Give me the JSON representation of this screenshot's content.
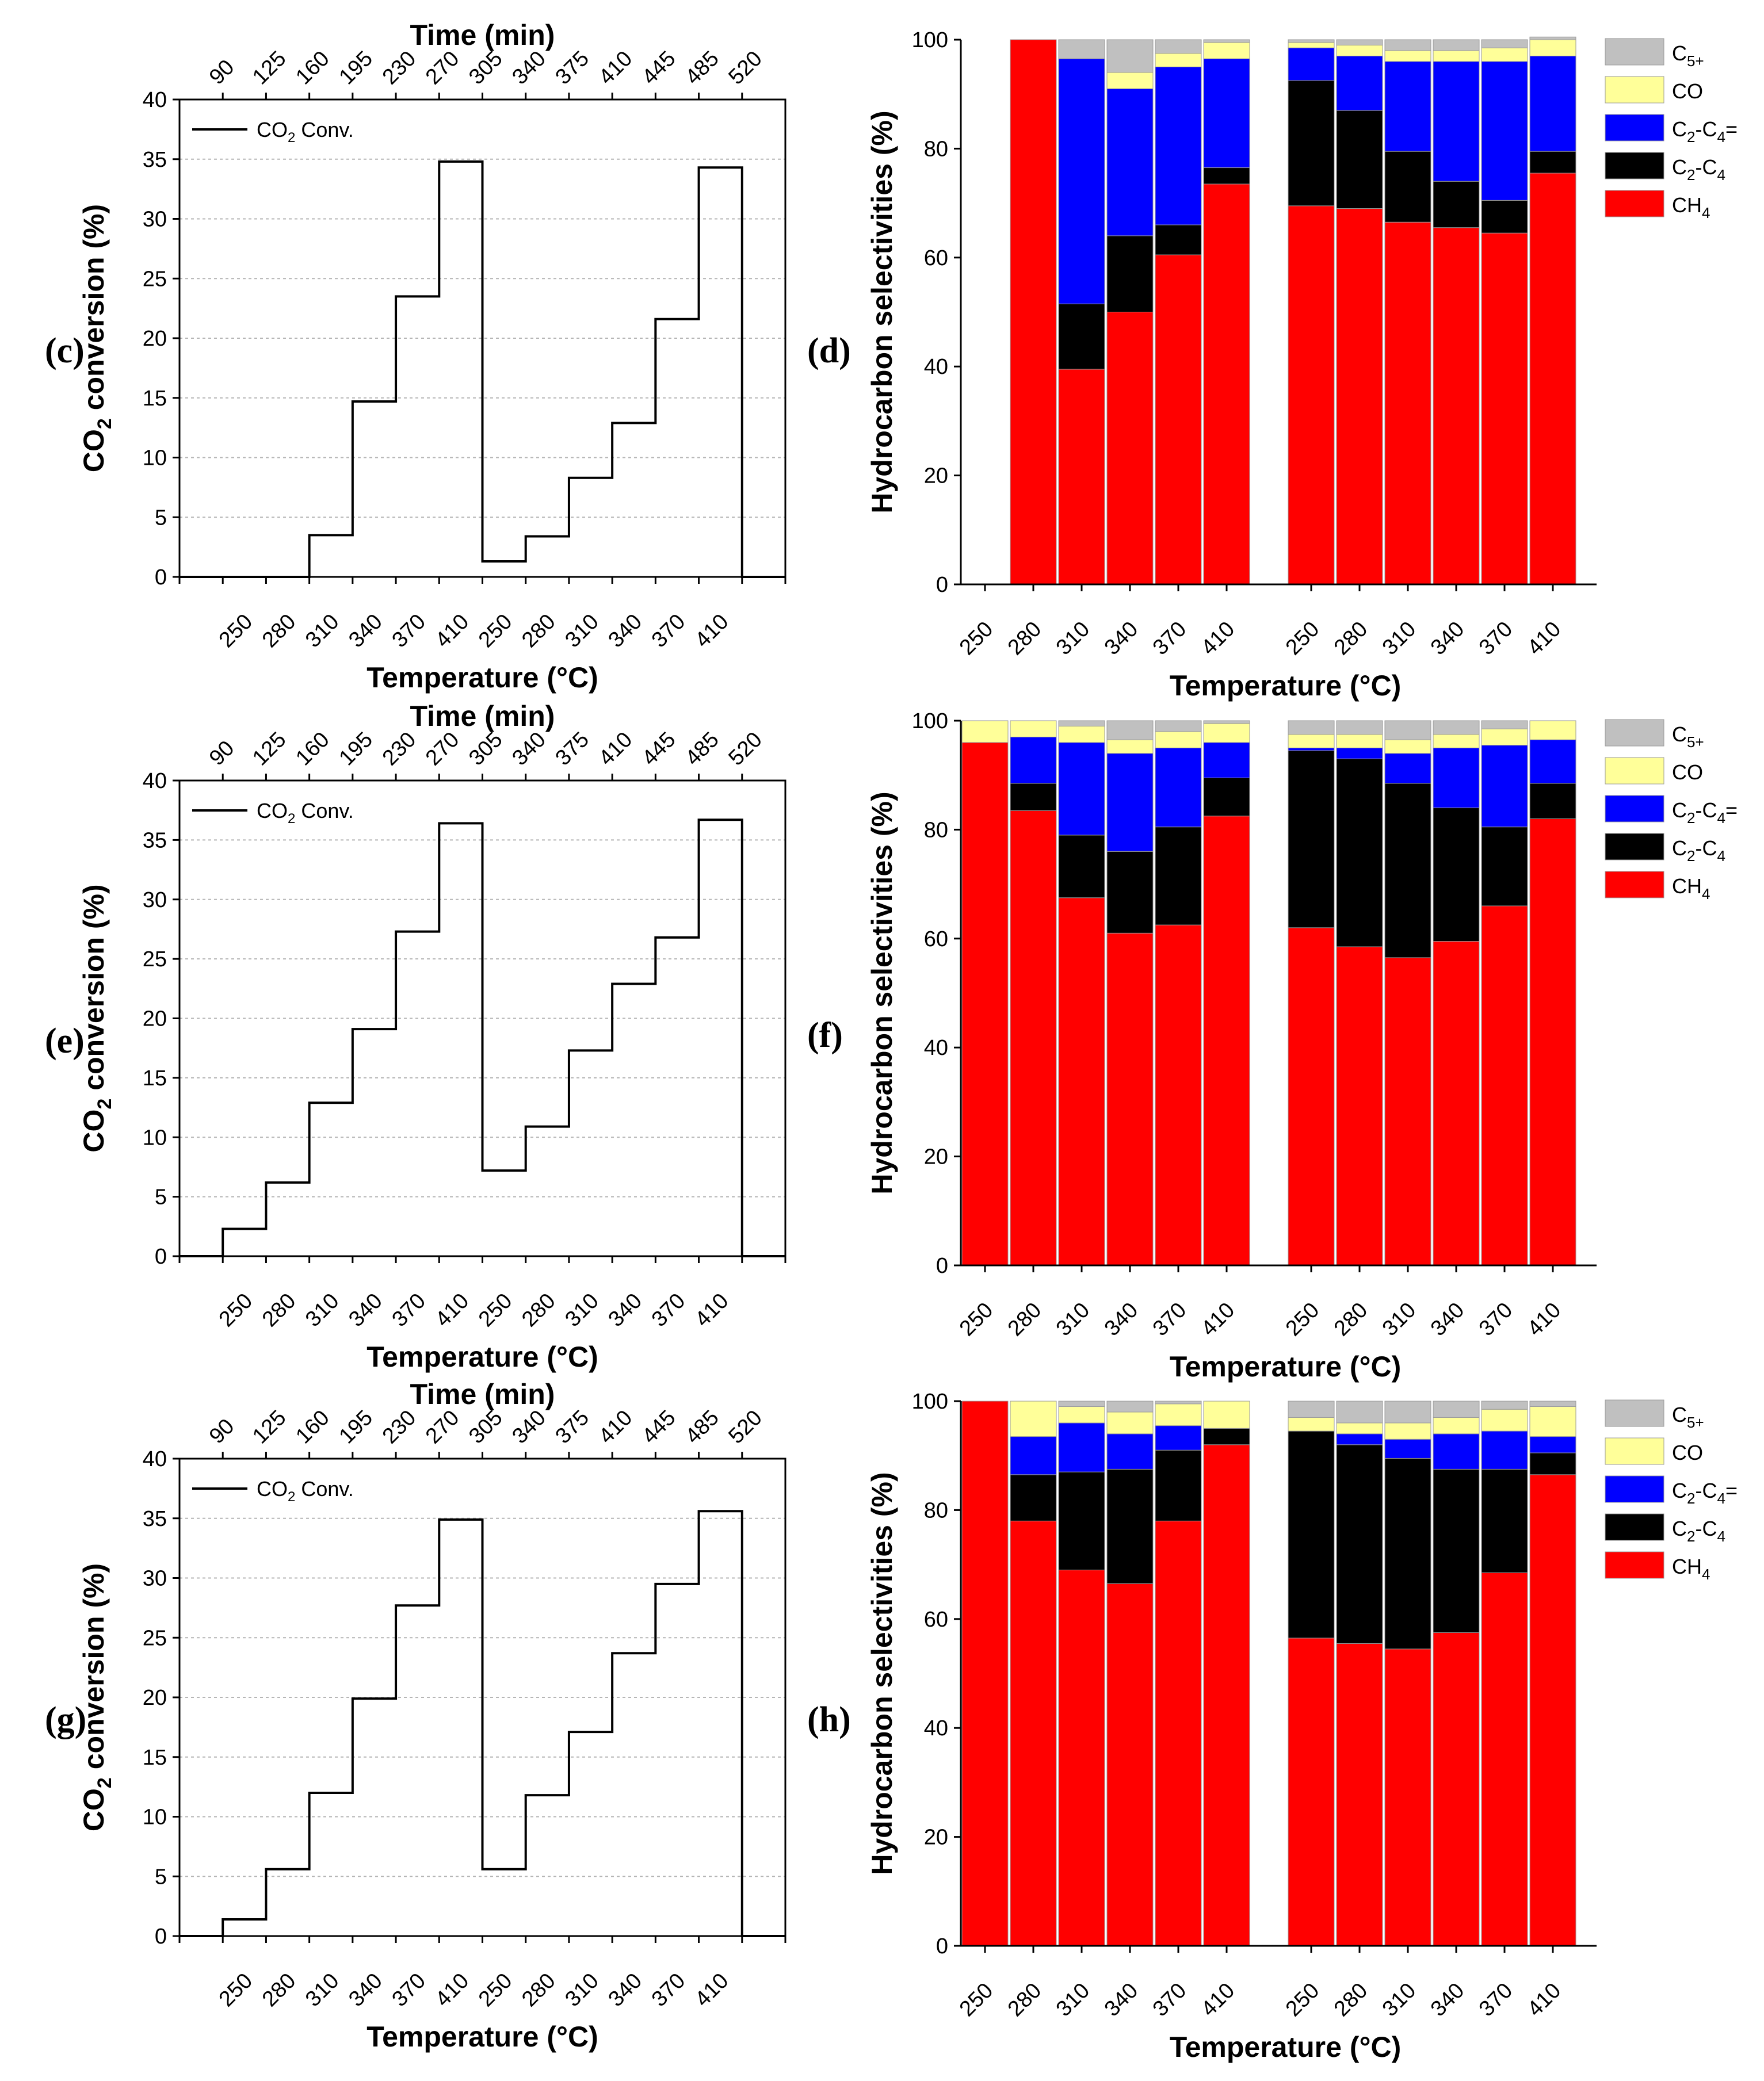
{
  "chart_data": [
    {
      "panel": "(c)",
      "type": "line",
      "title": "",
      "legend": "CO₂ Conv.",
      "legend_position": "top-left",
      "top_xlabel": "Time (min)",
      "top_ticks": [
        "90",
        "125",
        "160",
        "195",
        "230",
        "270",
        "305",
        "340",
        "375",
        "410",
        "445",
        "485",
        "520"
      ],
      "xlabel": "Temperature (°C)",
      "ylabel": "CO₂ conversion (%)",
      "ylim": [
        0,
        40
      ],
      "yticks": [
        0,
        5,
        10,
        15,
        20,
        25,
        30,
        35,
        40
      ],
      "grid": true,
      "categories": [
        "250",
        "280",
        "310",
        "340",
        "370",
        "410",
        "250",
        "280",
        "310",
        "340",
        "370",
        "410"
      ],
      "values": [
        0,
        0,
        3.5,
        14.7,
        23.5,
        34.8,
        1.3,
        3.4,
        8.3,
        12.9,
        21.6,
        34.3
      ],
      "trailing_value": 0
    },
    {
      "panel": "(d)",
      "type": "bar",
      "stacked": true,
      "xlabel": "Temperature (°C)",
      "ylabel": "Hydrocarbon selectivities (%)",
      "ylim": [
        0,
        100
      ],
      "yticks": [
        0,
        20,
        40,
        60,
        80,
        100
      ],
      "legend_position": "right",
      "categories": [
        "250",
        "280",
        "310",
        "340",
        "370",
        "410",
        "250",
        "280",
        "310",
        "340",
        "370",
        "410"
      ],
      "series": [
        {
          "name": "CH₄",
          "color": "#ff0000",
          "values": [
            0,
            100,
            39.5,
            50,
            60.5,
            73.5,
            69.5,
            69,
            66.5,
            65.5,
            64.5,
            75.5
          ]
        },
        {
          "name": "C₂-C₄",
          "color": "#000000",
          "values": [
            0,
            0,
            12,
            14,
            5.5,
            3,
            23,
            18,
            13,
            8.5,
            6,
            4
          ]
        },
        {
          "name": "C₂-C₄=",
          "color": "#0000ff",
          "values": [
            0,
            0,
            45,
            27,
            29,
            20,
            6,
            10,
            16.5,
            22,
            25.5,
            17.5
          ]
        },
        {
          "name": "CO",
          "color": "#ffff99",
          "values": [
            0,
            0,
            0,
            3,
            2.5,
            3,
            1,
            2,
            2,
            2,
            2.5,
            3
          ]
        },
        {
          "name": "C₅₊",
          "color": "#c0c0c0",
          "values": [
            0,
            0,
            3.5,
            6,
            2.5,
            0.5,
            0.5,
            1,
            2,
            2,
            1.5,
            0.5
          ]
        }
      ]
    },
    {
      "panel": "(e)",
      "type": "line",
      "title": "",
      "legend": "CO₂ Conv.",
      "legend_position": "top-left",
      "top_xlabel": "Time (min)",
      "top_ticks": [
        "90",
        "125",
        "160",
        "195",
        "230",
        "270",
        "305",
        "340",
        "375",
        "410",
        "445",
        "485",
        "520"
      ],
      "xlabel": "Temperature (°C)",
      "ylabel": "CO₂ conversion (%)",
      "ylim": [
        0,
        40
      ],
      "yticks": [
        0,
        5,
        10,
        15,
        20,
        25,
        30,
        35,
        40
      ],
      "grid": true,
      "categories": [
        "250",
        "280",
        "310",
        "340",
        "370",
        "410",
        "250",
        "280",
        "310",
        "340",
        "370",
        "410"
      ],
      "values": [
        2.3,
        6.2,
        12.9,
        19.1,
        27.3,
        36.4,
        7.2,
        10.9,
        17.3,
        22.9,
        26.8,
        36.7
      ],
      "trailing_value": 0
    },
    {
      "panel": "(f)",
      "type": "bar",
      "stacked": true,
      "xlabel": "Temperature (°C)",
      "ylabel": "Hydrocarbon selectivities (%)",
      "ylim": [
        0,
        100
      ],
      "yticks": [
        0,
        20,
        40,
        60,
        80,
        100
      ],
      "legend_position": "right",
      "categories": [
        "250",
        "280",
        "310",
        "340",
        "370",
        "410",
        "250",
        "280",
        "310",
        "340",
        "370",
        "410"
      ],
      "series": [
        {
          "name": "CH₄",
          "color": "#ff0000",
          "values": [
            96,
            83.5,
            67.5,
            61,
            62.5,
            82.5,
            62,
            58.5,
            56.5,
            59.5,
            66,
            82
          ]
        },
        {
          "name": "C₂-C₄",
          "color": "#000000",
          "values": [
            0,
            5,
            11.5,
            15,
            18,
            7,
            32.5,
            34.5,
            32,
            24.5,
            14.5,
            6.5
          ]
        },
        {
          "name": "C₂-C₄=",
          "color": "#0000ff",
          "values": [
            0,
            8.5,
            17,
            18,
            14.5,
            6.5,
            0.5,
            2,
            5.5,
            11,
            15,
            8
          ]
        },
        {
          "name": "CO",
          "color": "#ffff99",
          "values": [
            4,
            3,
            3,
            2.5,
            3,
            3.5,
            2.5,
            2.5,
            2.5,
            2.5,
            3,
            3.5
          ]
        },
        {
          "name": "C₅₊",
          "color": "#c0c0c0",
          "values": [
            0,
            0,
            1,
            3.5,
            2,
            0.5,
            2.5,
            2.5,
            3.5,
            2.5,
            1.5,
            0
          ]
        }
      ]
    },
    {
      "panel": "(g)",
      "type": "line",
      "title": "",
      "legend": "CO₂ Conv.",
      "legend_position": "top-left",
      "top_xlabel": "Time (min)",
      "top_ticks": [
        "90",
        "125",
        "160",
        "195",
        "230",
        "270",
        "305",
        "340",
        "375",
        "410",
        "445",
        "485",
        "520"
      ],
      "xlabel": "Temperature (°C)",
      "ylabel": "CO₂ conversion (%)",
      "ylim": [
        0,
        40
      ],
      "yticks": [
        0,
        5,
        10,
        15,
        20,
        25,
        30,
        35,
        40
      ],
      "grid": true,
      "categories": [
        "250",
        "280",
        "310",
        "340",
        "370",
        "410",
        "250",
        "280",
        "310",
        "340",
        "370",
        "410"
      ],
      "values": [
        1.4,
        5.6,
        12,
        19.9,
        27.7,
        34.9,
        5.6,
        11.8,
        17.1,
        23.7,
        29.5,
        35.6
      ],
      "trailing_value": 0
    },
    {
      "panel": "(h)",
      "type": "bar",
      "stacked": true,
      "xlabel": "Temperature (°C)",
      "ylabel": "Hydrocarbon selectivities (%)",
      "ylim": [
        0,
        100
      ],
      "yticks": [
        0,
        20,
        40,
        60,
        80,
        100
      ],
      "legend_position": "right",
      "categories": [
        "250",
        "280",
        "310",
        "340",
        "370",
        "410",
        "250",
        "280",
        "310",
        "340",
        "370",
        "410"
      ],
      "series": [
        {
          "name": "CH₄",
          "color": "#ff0000",
          "values": [
            100,
            78,
            69,
            66.5,
            78,
            92,
            56.5,
            55.5,
            54.5,
            57.5,
            68.5,
            86.5
          ]
        },
        {
          "name": "C₂-C₄",
          "color": "#000000",
          "values": [
            0,
            8.5,
            18,
            21,
            13,
            3,
            38,
            36.5,
            35,
            30,
            19,
            4
          ]
        },
        {
          "name": "C₂-C₄=",
          "color": "#0000ff",
          "values": [
            0,
            7,
            9,
            6.5,
            4.5,
            0,
            0,
            2,
            3.5,
            6.5,
            7,
            3
          ]
        },
        {
          "name": "CO",
          "color": "#ffff99",
          "values": [
            0,
            6.5,
            3,
            4,
            4,
            5,
            2.5,
            2,
            3,
            3,
            4,
            5.5
          ]
        },
        {
          "name": "C₅₊",
          "color": "#c0c0c0",
          "values": [
            0,
            0,
            1,
            2,
            0.5,
            0,
            3,
            4,
            4,
            3,
            1.5,
            1
          ]
        }
      ]
    }
  ]
}
